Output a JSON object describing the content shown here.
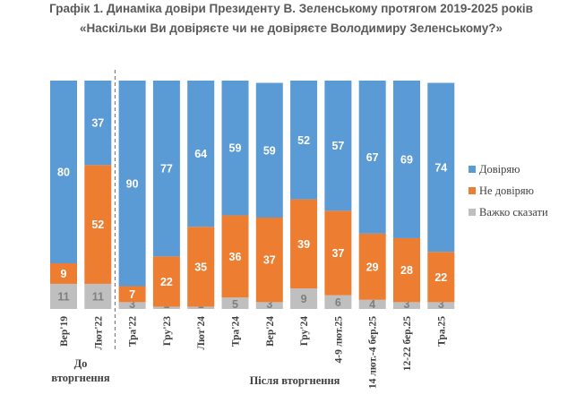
{
  "chart_data": {
    "type": "bar",
    "stacked": true,
    "title": "Графік 1. Динаміка довіри Президенту В. Зеленському протягом 2019-2025 років",
    "subtitle": "«Наскільки Ви довіряєте чи не довіряєте Володимиру Зеленському?»",
    "categories": [
      "Вер'19",
      "Лют'22",
      "Тра'22",
      "Гру'23",
      "Лют'24",
      "Тра'24",
      "Вер'24",
      "Гру'24",
      "4-9 лют.25",
      "14 лют.-4 бер.25",
      "12-22 бер.25",
      "Тра.25"
    ],
    "series": [
      {
        "name": "Важко сказати",
        "color": "#bfbfbf",
        "values": [
          11,
          11,
          3,
          1,
          1,
          5,
          3,
          9,
          6,
          4,
          3,
          3
        ]
      },
      {
        "name": "Не довіряю",
        "color": "#ed7d31",
        "values": [
          9,
          52,
          7,
          22,
          35,
          36,
          37,
          39,
          37,
          29,
          28,
          22
        ]
      },
      {
        "name": "Довіряю",
        "color": "#5b9bd5",
        "values": [
          80,
          37,
          90,
          77,
          64,
          59,
          59,
          52,
          57,
          67,
          69,
          74
        ]
      }
    ],
    "ylim": [
      0,
      100
    ],
    "grid": false,
    "legend_position": "right",
    "groups": [
      {
        "label": "До вторгнення",
        "categories": [
          0,
          1
        ]
      },
      {
        "label": "Після вторгнення",
        "categories": [
          2,
          3,
          4,
          5,
          6,
          7,
          8,
          9,
          10,
          11
        ]
      }
    ],
    "separator_after_category": 1
  },
  "legend": {
    "items": [
      {
        "label": "Довіряю",
        "color": "#5b9bd5"
      },
      {
        "label": "Не довіряю",
        "color": "#ed7d31"
      },
      {
        "label": "Важко сказати",
        "color": "#bfbfbf"
      }
    ]
  },
  "group_labels": {
    "before_line1": "До",
    "before_line2": "вторгнення",
    "after": "Після вторгнення"
  }
}
